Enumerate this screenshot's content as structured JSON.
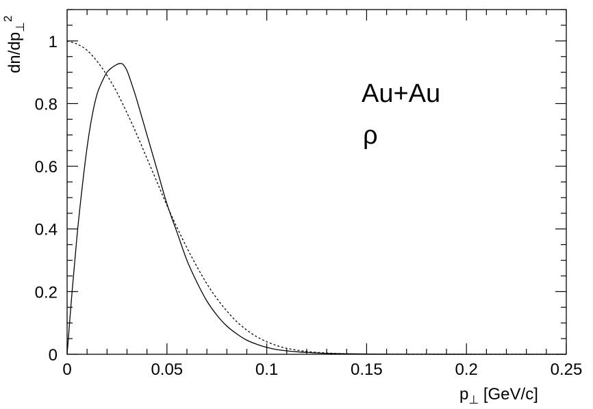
{
  "chart_data": {
    "type": "line",
    "xlabel": "p⊥ [GeV/c]",
    "ylabel": "dn/dp⊥²",
    "xlim": [
      0,
      0.25
    ],
    "ylim": [
      0,
      1.1
    ],
    "grid": false,
    "x_ticks": [
      {
        "value": 0,
        "label": "0"
      },
      {
        "value": 0.05,
        "label": "0.05"
      },
      {
        "value": 0.1,
        "label": "0.1"
      },
      {
        "value": 0.15,
        "label": "0.15"
      },
      {
        "value": 0.2,
        "label": "0.2"
      },
      {
        "value": 0.25,
        "label": "0.25"
      }
    ],
    "y_ticks": [
      {
        "value": 0,
        "label": "0"
      },
      {
        "value": 0.2,
        "label": "0.2"
      },
      {
        "value": 0.4,
        "label": "0.4"
      },
      {
        "value": 0.6,
        "label": "0.6"
      },
      {
        "value": 0.8,
        "label": "0.8"
      },
      {
        "value": 1,
        "label": "1"
      }
    ],
    "annotations": [
      "Au+Au",
      "ρ"
    ],
    "series": [
      {
        "style": "solid",
        "x": [
          0.0,
          0.0025,
          0.005,
          0.0075,
          0.01,
          0.0125,
          0.015,
          0.0175,
          0.02,
          0.0225,
          0.025,
          0.0265,
          0.028,
          0.03,
          0.0325,
          0.035,
          0.04,
          0.045,
          0.05,
          0.055,
          0.06,
          0.065,
          0.07,
          0.075,
          0.08,
          0.085,
          0.09,
          0.095,
          0.1,
          0.105,
          0.11,
          0.115,
          0.12,
          0.13,
          0.14,
          0.15,
          0.16,
          0.18,
          0.2,
          0.22,
          0.25
        ],
        "y": [
          0.0,
          0.2,
          0.38,
          0.53,
          0.66,
          0.76,
          0.83,
          0.87,
          0.9,
          0.915,
          0.925,
          0.928,
          0.925,
          0.905,
          0.86,
          0.81,
          0.7,
          0.59,
          0.48,
          0.39,
          0.3,
          0.23,
          0.17,
          0.125,
          0.09,
          0.065,
          0.045,
          0.032,
          0.022,
          0.015,
          0.011,
          0.008,
          0.006,
          0.003,
          0.0015,
          0.001,
          0.0005,
          0.0002,
          0.0001,
          0.0,
          0.0
        ]
      },
      {
        "style": "dashed",
        "x": [
          0.0,
          0.005,
          0.01,
          0.015,
          0.02,
          0.025,
          0.03,
          0.035,
          0.04,
          0.045,
          0.05,
          0.055,
          0.06,
          0.065,
          0.07,
          0.075,
          0.08,
          0.085,
          0.09,
          0.095,
          0.1,
          0.105,
          0.11,
          0.12,
          0.13,
          0.14,
          0.15,
          0.17,
          0.2,
          0.25
        ],
        "y": [
          1.0,
          0.99,
          0.97,
          0.935,
          0.89,
          0.835,
          0.77,
          0.7,
          0.625,
          0.55,
          0.475,
          0.405,
          0.34,
          0.28,
          0.225,
          0.178,
          0.138,
          0.104,
          0.077,
          0.056,
          0.04,
          0.028,
          0.019,
          0.009,
          0.004,
          0.0018,
          0.0008,
          0.0002,
          0.0,
          0.0
        ]
      }
    ]
  }
}
